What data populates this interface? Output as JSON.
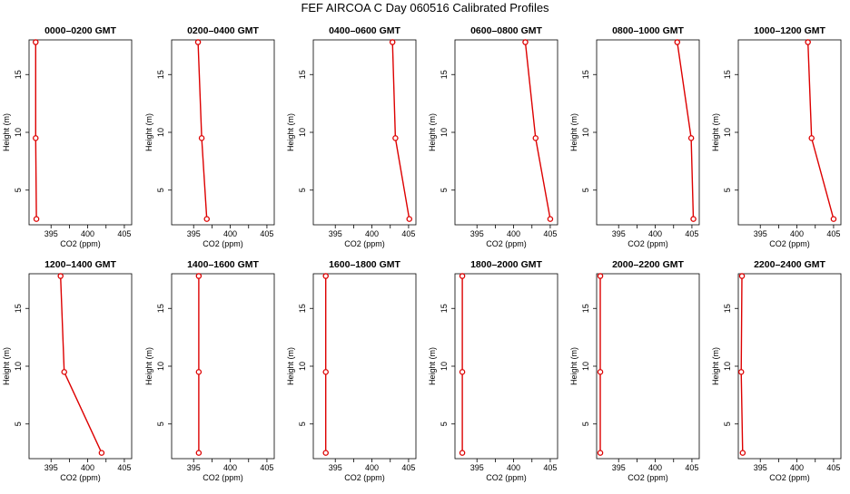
{
  "title": "FEF AIRCOA C  Day 060516  Calibrated Profiles",
  "colors": {
    "series": "#dd0000",
    "axis": "#000000",
    "background": "#ffffff"
  },
  "chart_data": [
    {
      "type": "line",
      "title": "0000–0200 GMT",
      "xlabel": "CO2 (ppm)",
      "ylabel": "Height (m)",
      "xlim": [
        392,
        406
      ],
      "ylim": [
        2,
        18
      ],
      "xticks": [
        "395",
        "400",
        "405"
      ],
      "yticks": [
        "5",
        "10",
        "15"
      ],
      "points": [
        {
          "x": 393.0,
          "y": 2.5
        },
        {
          "x": 392.9,
          "y": 9.5
        },
        {
          "x": 392.9,
          "y": 17.8
        }
      ]
    },
    {
      "type": "line",
      "title": "0200–0400 GMT",
      "xlabel": "CO2 (ppm)",
      "ylabel": "Height (m)",
      "xlim": [
        392,
        406
      ],
      "ylim": [
        2,
        18
      ],
      "xticks": [
        "395",
        "400",
        "405"
      ],
      "yticks": [
        "5",
        "10",
        "15"
      ],
      "points": [
        {
          "x": 396.8,
          "y": 2.5
        },
        {
          "x": 396.1,
          "y": 9.5
        },
        {
          "x": 395.6,
          "y": 17.8
        }
      ]
    },
    {
      "type": "line",
      "title": "0400–0600 GMT",
      "xlabel": "CO2 (ppm)",
      "ylabel": "Height (m)",
      "xlim": [
        392,
        406
      ],
      "ylim": [
        2,
        18
      ],
      "xticks": [
        "395",
        "400",
        "405"
      ],
      "yticks": [
        "5",
        "10",
        "15"
      ],
      "points": [
        {
          "x": 405.1,
          "y": 2.5
        },
        {
          "x": 403.2,
          "y": 9.5
        },
        {
          "x": 402.8,
          "y": 17.8
        }
      ]
    },
    {
      "type": "line",
      "title": "0600–0800 GMT",
      "xlabel": "CO2 (ppm)",
      "ylabel": "Height (m)",
      "xlim": [
        392,
        406
      ],
      "ylim": [
        2,
        18
      ],
      "xticks": [
        "395",
        "400",
        "405"
      ],
      "yticks": [
        "5",
        "10",
        "15"
      ],
      "points": [
        {
          "x": 405.0,
          "y": 2.5
        },
        {
          "x": 403.0,
          "y": 9.5
        },
        {
          "x": 401.6,
          "y": 17.8
        }
      ]
    },
    {
      "type": "line",
      "title": "0800–1000 GMT",
      "xlabel": "CO2 (ppm)",
      "ylabel": "Height (m)",
      "xlim": [
        392,
        406
      ],
      "ylim": [
        2,
        18
      ],
      "xticks": [
        "395",
        "400",
        "405"
      ],
      "yticks": [
        "5",
        "10",
        "15"
      ],
      "points": [
        {
          "x": 405.2,
          "y": 2.5
        },
        {
          "x": 404.9,
          "y": 9.5
        },
        {
          "x": 403.0,
          "y": 17.8
        }
      ]
    },
    {
      "type": "line",
      "title": "1000–1200 GMT",
      "xlabel": "CO2 (ppm)",
      "ylabel": "Height (m)",
      "xlim": [
        392,
        406
      ],
      "ylim": [
        2,
        18
      ],
      "xticks": [
        "395",
        "400",
        "405"
      ],
      "yticks": [
        "5",
        "10",
        "15"
      ],
      "points": [
        {
          "x": 405.0,
          "y": 2.5
        },
        {
          "x": 402.0,
          "y": 9.5
        },
        {
          "x": 401.5,
          "y": 17.8
        }
      ]
    },
    {
      "type": "line",
      "title": "1200–1400 GMT",
      "xlabel": "CO2 (ppm)",
      "ylabel": "Height (m)",
      "xlim": [
        392,
        406
      ],
      "ylim": [
        2,
        18
      ],
      "xticks": [
        "395",
        "400",
        "405"
      ],
      "yticks": [
        "5",
        "10",
        "15"
      ],
      "points": [
        {
          "x": 401.9,
          "y": 2.5
        },
        {
          "x": 396.8,
          "y": 9.5
        },
        {
          "x": 396.3,
          "y": 17.8
        }
      ]
    },
    {
      "type": "line",
      "title": "1400–1600 GMT",
      "xlabel": "CO2 (ppm)",
      "ylabel": "Height (m)",
      "xlim": [
        392,
        406
      ],
      "ylim": [
        2,
        18
      ],
      "xticks": [
        "395",
        "400",
        "405"
      ],
      "yticks": [
        "5",
        "10",
        "15"
      ],
      "points": [
        {
          "x": 395.7,
          "y": 2.5
        },
        {
          "x": 395.7,
          "y": 9.5
        },
        {
          "x": 395.7,
          "y": 17.8
        }
      ]
    },
    {
      "type": "line",
      "title": "1600–1800 GMT",
      "xlabel": "CO2 (ppm)",
      "ylabel": "Height (m)",
      "xlim": [
        392,
        406
      ],
      "ylim": [
        2,
        18
      ],
      "xticks": [
        "395",
        "400",
        "405"
      ],
      "yticks": [
        "5",
        "10",
        "15"
      ],
      "points": [
        {
          "x": 393.7,
          "y": 2.5
        },
        {
          "x": 393.7,
          "y": 9.5
        },
        {
          "x": 393.7,
          "y": 17.8
        }
      ]
    },
    {
      "type": "line",
      "title": "1800–2000 GMT",
      "xlabel": "CO2 (ppm)",
      "ylabel": "Height (m)",
      "xlim": [
        392,
        406
      ],
      "ylim": [
        2,
        18
      ],
      "xticks": [
        "395",
        "400",
        "405"
      ],
      "yticks": [
        "5",
        "10",
        "15"
      ],
      "points": [
        {
          "x": 393.0,
          "y": 2.5
        },
        {
          "x": 393.0,
          "y": 9.5
        },
        {
          "x": 393.0,
          "y": 17.8
        }
      ]
    },
    {
      "type": "line",
      "title": "2000–2200 GMT",
      "xlabel": "CO2 (ppm)",
      "ylabel": "Height (m)",
      "xlim": [
        392,
        406
      ],
      "ylim": [
        2,
        18
      ],
      "xticks": [
        "395",
        "400",
        "405"
      ],
      "yticks": [
        "5",
        "10",
        "15"
      ],
      "points": [
        {
          "x": 392.5,
          "y": 2.5
        },
        {
          "x": 392.5,
          "y": 9.5
        },
        {
          "x": 392.5,
          "y": 17.8
        }
      ]
    },
    {
      "type": "line",
      "title": "2200–2400 GMT",
      "xlabel": "CO2 (ppm)",
      "ylabel": "Height (m)",
      "xlim": [
        392,
        406
      ],
      "ylim": [
        2,
        18
      ],
      "xticks": [
        "395",
        "400",
        "405"
      ],
      "yticks": [
        "5",
        "10",
        "15"
      ],
      "points": [
        {
          "x": 392.6,
          "y": 2.5
        },
        {
          "x": 392.4,
          "y": 9.5
        },
        {
          "x": 392.5,
          "y": 17.8
        }
      ]
    }
  ]
}
